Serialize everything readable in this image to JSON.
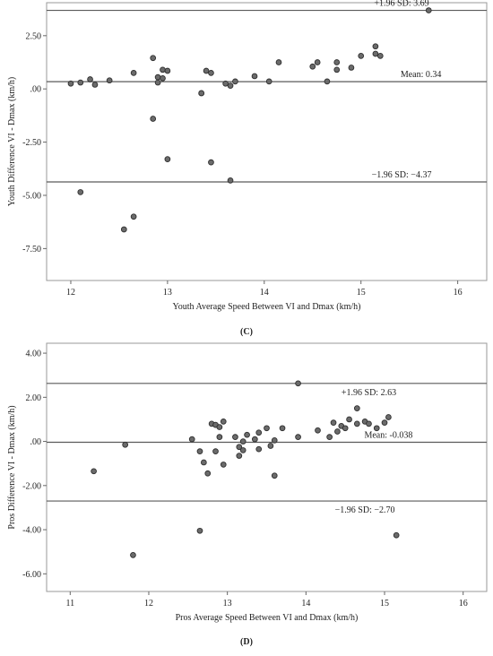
{
  "chart_data": [
    {
      "type": "scatter",
      "panel_label": "(C)",
      "xlabel": "Youth Average Speed Between VI and Dmax (km/h)",
      "ylabel": "Youth Difference VI - Dmax (km/h)",
      "xlim": [
        11.75,
        16.3
      ],
      "ylim": [
        -9.0,
        4.05
      ],
      "xticks": [
        12,
        13,
        14,
        15,
        16
      ],
      "xtick_labels": [
        "12",
        "13",
        "14",
        "15",
        "16"
      ],
      "yticks": [
        2.5,
        0,
        -2.5,
        -5,
        -7.5
      ],
      "ytick_labels": [
        "2.50",
        ".00",
        "-2.50",
        "-5.00",
        "-7.50"
      ],
      "grid": false,
      "reference_lines": [
        {
          "value": 3.69,
          "label": "+1.96 SD: 3.69",
          "label_x": 15.42,
          "label_pos": "above"
        },
        {
          "value": 0.34,
          "label": "Mean: 0.34",
          "label_x": 15.62,
          "label_pos": "above"
        },
        {
          "value": -4.37,
          "label": "−1.96 SD: −4.37",
          "label_x": 15.42,
          "label_pos": "above"
        }
      ],
      "x": [
        12.0,
        12.1,
        12.2,
        12.25,
        12.4,
        12.65,
        12.85,
        12.9,
        12.95,
        13.0,
        12.85,
        12.9,
        12.95,
        13.0,
        12.1,
        12.55,
        12.65,
        13.35,
        13.4,
        13.45,
        13.35,
        13.6,
        13.65,
        13.7,
        13.45,
        13.65,
        13.9,
        14.05,
        14.15,
        14.5,
        14.55,
        14.65,
        14.75,
        14.75,
        14.9,
        15.0,
        15.15,
        15.2,
        15.15,
        15.7
      ],
      "y": [
        0.25,
        0.3,
        0.45,
        0.2,
        0.4,
        0.75,
        1.45,
        0.55,
        0.9,
        0.85,
        -1.4,
        0.3,
        0.5,
        -3.3,
        -4.85,
        -6.6,
        -6.0,
        -0.2,
        0.85,
        0.75,
        -0.2,
        0.25,
        0.15,
        0.35,
        -3.45,
        -4.3,
        0.6,
        0.35,
        1.25,
        1.05,
        1.25,
        0.35,
        1.25,
        0.9,
        1.0,
        1.55,
        2.0,
        1.55,
        1.65,
        3.69
      ]
    },
    {
      "type": "scatter",
      "panel_label": "(D)",
      "xlabel": "Pros Average Speed Between VI and Dmax (km/h)",
      "ylabel": "Pros Difference VI - Dmax (km/h)",
      "xlim": [
        10.7,
        16.3
      ],
      "ylim": [
        -6.8,
        4.45
      ],
      "xticks": [
        11,
        12,
        13,
        14,
        15,
        16
      ],
      "xtick_labels": [
        "11",
        "12",
        "13",
        "14",
        "15",
        "16"
      ],
      "yticks": [
        4,
        2,
        0,
        -2,
        -4,
        -6
      ],
      "ytick_labels": [
        "4.00",
        "2.00",
        ".00",
        "-2.00",
        "-4.00",
        "-6.00"
      ],
      "grid": false,
      "reference_lines": [
        {
          "value": 2.63,
          "label": "+1.96 SD: 2.63",
          "label_x": 14.8,
          "label_pos": "below"
        },
        {
          "value": -0.038,
          "label": "Mean: -0.038",
          "label_x": 15.05,
          "label_pos": "above"
        },
        {
          "value": -2.7,
          "label": "−1.96 SD: −2.70",
          "label_x": 14.75,
          "label_pos": "below"
        }
      ],
      "x": [
        11.3,
        11.7,
        11.8,
        12.55,
        12.65,
        12.65,
        12.7,
        12.75,
        12.8,
        12.85,
        12.85,
        12.9,
        12.9,
        12.95,
        12.95,
        13.1,
        13.15,
        13.15,
        13.2,
        13.2,
        13.25,
        13.35,
        13.4,
        13.4,
        13.5,
        13.55,
        13.6,
        13.6,
        13.7,
        13.9,
        13.9,
        14.15,
        14.3,
        14.35,
        14.4,
        14.45,
        14.5,
        14.55,
        14.65,
        14.65,
        14.75,
        14.8,
        14.9,
        15.0,
        15.05,
        15.15
      ],
      "y": [
        -1.35,
        -0.15,
        -5.15,
        0.1,
        -0.45,
        -4.05,
        -0.95,
        -1.45,
        0.8,
        0.75,
        -0.45,
        0.65,
        0.2,
        0.9,
        -1.05,
        0.2,
        -0.65,
        -0.25,
        0.0,
        -0.4,
        0.3,
        0.1,
        0.4,
        -0.35,
        0.6,
        -0.2,
        0.05,
        -1.55,
        0.6,
        2.63,
        0.2,
        0.5,
        0.2,
        0.85,
        0.45,
        0.7,
        0.6,
        1.0,
        1.5,
        0.8,
        0.9,
        0.8,
        0.6,
        0.85,
        1.1,
        -4.25
      ]
    }
  ]
}
